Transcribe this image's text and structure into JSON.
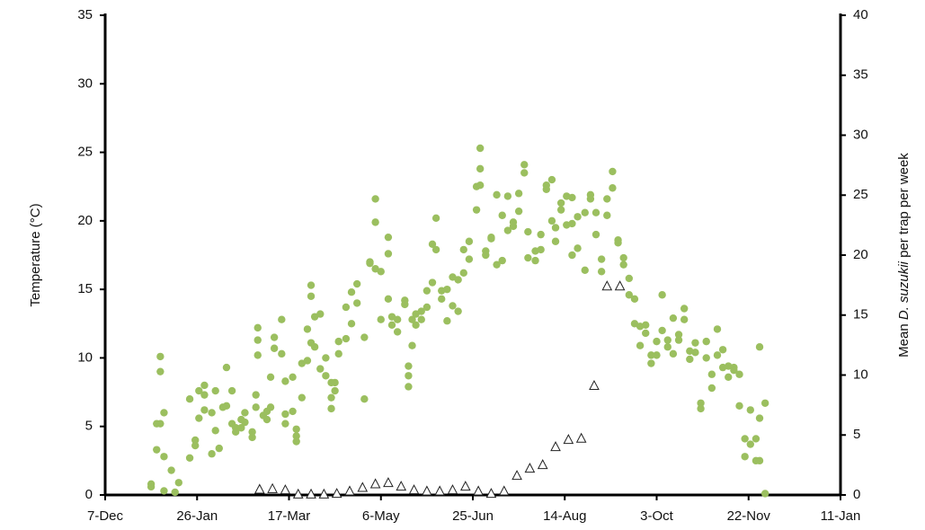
{
  "chart_data": {
    "type": "scatter",
    "ylabel": "Temperature (°C)",
    "y2label": [
      "Mean ",
      "D. suzukii",
      " per trap per week"
    ],
    "xlim": [
      0,
      400
    ],
    "xticks": [
      {
        "value": 0,
        "label": "7-Dec"
      },
      {
        "value": 50,
        "label": "26-Jan"
      },
      {
        "value": 100,
        "label": "17-Mar"
      },
      {
        "value": 150,
        "label": "6-May"
      },
      {
        "value": 200,
        "label": "25-Jun"
      },
      {
        "value": 250,
        "label": "14-Aug"
      },
      {
        "value": 300,
        "label": "3-Oct"
      },
      {
        "value": 350,
        "label": "22-Nov"
      },
      {
        "value": 400,
        "label": "11-Jan"
      }
    ],
    "ylim": [
      0,
      35
    ],
    "yticks": [
      0,
      5,
      10,
      15,
      20,
      25,
      30,
      35
    ],
    "y2lim": [
      0,
      40
    ],
    "y2ticks": [
      0,
      5,
      10,
      15,
      20,
      25,
      30,
      35,
      40
    ],
    "series": [
      {
        "color": "#9bbf5f",
        "marker": "circle",
        "x": [
          25,
          25,
          28,
          28,
          30,
          30,
          30,
          32,
          32,
          32,
          36,
          38,
          40,
          46,
          46,
          49,
          49,
          51,
          51,
          54,
          54,
          54,
          58,
          58,
          60,
          60,
          62,
          64,
          66,
          66,
          69,
          69,
          71,
          71,
          74,
          74,
          76,
          76,
          80,
          80,
          82,
          82,
          83,
          83,
          83,
          86,
          88,
          88,
          90,
          90,
          92,
          92,
          96,
          96,
          98,
          98,
          98,
          102,
          102,
          104,
          104,
          104,
          107,
          107,
          110,
          110,
          112,
          112,
          112,
          114,
          114,
          117,
          117,
          120,
          120,
          123,
          123,
          123,
          125,
          125,
          127,
          127,
          131,
          131,
          134,
          134,
          137,
          137,
          141,
          141,
          144,
          144,
          147,
          147,
          147,
          150,
          150,
          154,
          154,
          154,
          156,
          156,
          159,
          159,
          163,
          163,
          165,
          165,
          165,
          167,
          167,
          169,
          169,
          172,
          172,
          175,
          175,
          178,
          178,
          180,
          180,
          183,
          183,
          186,
          186,
          189,
          189,
          192,
          192,
          195,
          195,
          198,
          198,
          202,
          202,
          204,
          204,
          204,
          207,
          207,
          210,
          210,
          213,
          213,
          216,
          216,
          219,
          219,
          222,
          222,
          225,
          225,
          228,
          228,
          230,
          230,
          234,
          234,
          237,
          237,
          240,
          240,
          243,
          243,
          245,
          245,
          248,
          248,
          251,
          251,
          254,
          254,
          254,
          257,
          257,
          261,
          261,
          264,
          264,
          267,
          267,
          270,
          270,
          273,
          273,
          276,
          276,
          279,
          279,
          282,
          282,
          285,
          285,
          288,
          288,
          291,
          291,
          294,
          294,
          297,
          297,
          300,
          300,
          303,
          303,
          306,
          306,
          309,
          309,
          312,
          312,
          315,
          315,
          318,
          318,
          321,
          321,
          324,
          324,
          327,
          327,
          330,
          330,
          333,
          333,
          336,
          336,
          339,
          339,
          342,
          342,
          345,
          345,
          348,
          348,
          351,
          351,
          354,
          354,
          356,
          356,
          356,
          359,
          359
        ],
        "values": [
          0.8,
          0.6,
          5.2,
          3.3,
          9.0,
          10.1,
          5.2,
          6.0,
          2.8,
          0.3,
          1.8,
          0.2,
          0.9,
          2.7,
          7.0,
          4.0,
          3.6,
          7.6,
          5.6,
          8.0,
          7.3,
          6.2,
          6.0,
          3.0,
          7.6,
          4.7,
          3.4,
          6.4,
          9.3,
          6.5,
          7.6,
          5.2,
          4.9,
          4.6,
          5.5,
          4.9,
          6.0,
          5.3,
          4.2,
          4.6,
          7.3,
          6.4,
          11.3,
          12.2,
          10.2,
          5.8,
          6.1,
          5.5,
          6.4,
          8.6,
          11.5,
          10.7,
          10.3,
          12.8,
          8.3,
          5.9,
          5.2,
          8.6,
          6.1,
          4.3,
          3.9,
          4.8,
          7.1,
          9.6,
          9.8,
          12.1,
          15.3,
          14.5,
          11.1,
          13.0,
          10.8,
          13.2,
          9.2,
          10.0,
          8.7,
          8.2,
          7.1,
          6.3,
          7.6,
          8.2,
          10.3,
          11.2,
          11.4,
          13.7,
          12.5,
          14.8,
          15.4,
          14.0,
          11.5,
          7.0,
          17.0,
          16.9,
          21.6,
          19.9,
          16.5,
          12.8,
          16.3,
          18.8,
          17.6,
          14.3,
          13.0,
          12.4,
          11.9,
          12.8,
          13.9,
          14.2,
          8.7,
          7.9,
          9.4,
          10.9,
          12.8,
          13.2,
          12.4,
          13.4,
          12.8,
          14.9,
          13.7,
          15.5,
          18.3,
          20.2,
          17.9,
          14.9,
          14.3,
          15.0,
          12.7,
          13.8,
          15.9,
          15.7,
          13.4,
          16.2,
          17.9,
          18.5,
          17.2,
          22.5,
          20.8,
          25.3,
          23.8,
          22.6,
          17.8,
          17.5,
          18.7,
          18.8,
          21.9,
          16.8,
          17.1,
          20.4,
          21.8,
          19.3,
          19.6,
          19.9,
          20.7,
          22.0,
          24.1,
          23.5,
          19.2,
          17.3,
          17.8,
          17.1,
          19.0,
          17.9,
          22.6,
          22.3,
          23.0,
          20.0,
          18.5,
          19.5,
          21.3,
          20.8,
          21.8,
          19.7,
          21.7,
          17.5,
          19.8,
          20.3,
          18.0,
          16.4,
          20.6,
          21.6,
          21.9,
          20.6,
          19.0,
          16.3,
          17.2,
          20.4,
          21.6,
          23.6,
          22.4,
          18.6,
          18.4,
          17.3,
          16.8,
          15.8,
          14.6,
          14.3,
          12.5,
          12.3,
          10.9,
          11.8,
          12.4,
          10.2,
          9.6,
          11.2,
          10.2,
          14.6,
          12.0,
          11.3,
          10.8,
          12.9,
          10.3,
          11.3,
          11.7,
          13.6,
          12.8,
          10.5,
          9.9,
          11.1,
          10.4,
          6.7,
          6.3,
          11.2,
          10.0,
          8.8,
          7.8,
          12.1,
          10.2,
          9.3,
          10.6,
          8.6,
          9.4,
          9.3,
          9.1,
          6.5,
          8.8,
          4.1,
          2.8,
          6.2,
          3.7,
          4.1,
          2.5,
          10.8,
          5.6,
          2.5,
          6.7,
          0.1
        ]
      },
      {
        "color": "#ffffff",
        "marker": "triangle",
        "axis": "y2",
        "x": [
          84,
          91,
          98,
          105,
          112,
          119,
          126,
          133,
          140,
          147,
          154,
          161,
          168,
          175,
          182,
          189,
          196,
          203,
          210,
          217,
          224,
          231,
          238,
          245,
          252,
          259,
          266,
          273,
          280
        ],
        "values": [
          0.45,
          0.5,
          0.4,
          0.05,
          0.05,
          0.05,
          0.1,
          0.3,
          0.6,
          0.9,
          1.0,
          0.7,
          0.4,
          0.3,
          0.3,
          0.4,
          0.7,
          0.3,
          0.1,
          0.3,
          1.6,
          2.2,
          2.5,
          4.0,
          4.6,
          4.7,
          9.1,
          17.4,
          17.4
        ]
      }
    ]
  }
}
